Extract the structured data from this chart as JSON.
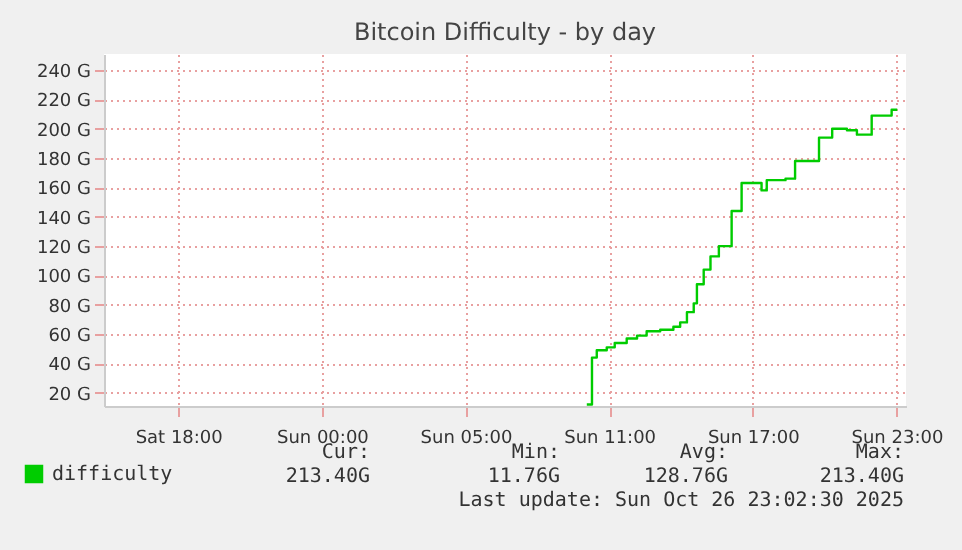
{
  "chart_data": {
    "type": "step",
    "title": "Bitcoin Difficulty - by day",
    "x": [
      "2025-10-26T09:04",
      "2025-10-26T09:17",
      "2025-10-26T09:29",
      "2025-10-26T09:54",
      "2025-10-26T10:14",
      "2025-10-26T10:44",
      "2025-10-26T11:10",
      "2025-10-26T11:34",
      "2025-10-26T12:08",
      "2025-10-26T12:41",
      "2025-10-26T12:58",
      "2025-10-26T13:15",
      "2025-10-26T13:32",
      "2025-10-26T13:40",
      "2025-10-26T13:57",
      "2025-10-26T14:14",
      "2025-10-26T14:35",
      "2025-10-26T14:56",
      "2025-10-26T15:07",
      "2025-10-26T15:20",
      "2025-10-26T15:32",
      "2025-10-26T15:49",
      "2025-10-26T16:22",
      "2025-10-26T16:35",
      "2025-10-26T16:52",
      "2025-10-26T17:22",
      "2025-10-26T17:37",
      "2025-10-26T17:46",
      "2025-10-26T18:32",
      "2025-10-26T18:46",
      "2025-10-26T19:05",
      "2025-10-26T19:19",
      "2025-10-26T19:56",
      "2025-10-26T20:21",
      "2025-10-26T20:46",
      "2025-10-26T20:58",
      "2025-10-26T21:36",
      "2025-10-26T21:48",
      "2025-10-26T22:02"
    ],
    "series": [
      {
        "name": "difficulty",
        "color": "#00cc00",
        "values": [
          12,
          44,
          49,
          51,
          54,
          57,
          59,
          62,
          63,
          65,
          68,
          75,
          81,
          94,
          104,
          113,
          120,
          120,
          144,
          144,
          163,
          163,
          158,
          165,
          165,
          166,
          166,
          178,
          178,
          194,
          194,
          200,
          199,
          196,
          196,
          209,
          209,
          213,
          213
        ]
      }
    ],
    "xlim": [
      "2025-10-25T12:54",
      "2025-10-26T22:24"
    ],
    "xticks": [
      {
        "value": "2025-10-25T16:00",
        "label": "Sat 18:00"
      },
      {
        "value": "2025-10-25T22:00",
        "label": "Sun 00:00"
      },
      {
        "value": "2025-10-26T04:00",
        "label": "Sun 05:00"
      },
      {
        "value": "2025-10-26T10:00",
        "label": "Sun 11:00"
      },
      {
        "value": "2025-10-26T16:00",
        "label": "Sun 17:00"
      },
      {
        "value": "2025-10-26T22:00",
        "label": "Sun 23:00"
      }
    ],
    "ylim": [
      11,
      251
    ],
    "yticks": [
      {
        "value": 20,
        "label": "20 G"
      },
      {
        "value": 40,
        "label": "40 G"
      },
      {
        "value": 60,
        "label": "60 G"
      },
      {
        "value": 80,
        "label": "80 G"
      },
      {
        "value": 100,
        "label": "100 G"
      },
      {
        "value": 120,
        "label": "120 G"
      },
      {
        "value": 140,
        "label": "140 G"
      },
      {
        "value": 160,
        "label": "160 G"
      },
      {
        "value": 180,
        "label": "180 G"
      },
      {
        "value": 200,
        "label": "200 G"
      },
      {
        "value": 220,
        "label": "220 G"
      },
      {
        "value": 240,
        "label": "240 G"
      }
    ],
    "grid": true,
    "legend": "bottom left",
    "annotations": [
      "Cur:",
      "213.40G",
      "Min:",
      "11.76G",
      "Avg:",
      "128.76G",
      "Max:",
      "213.40G",
      "Last update: Sun Oct 26 23:02:30 2025"
    ]
  }
}
